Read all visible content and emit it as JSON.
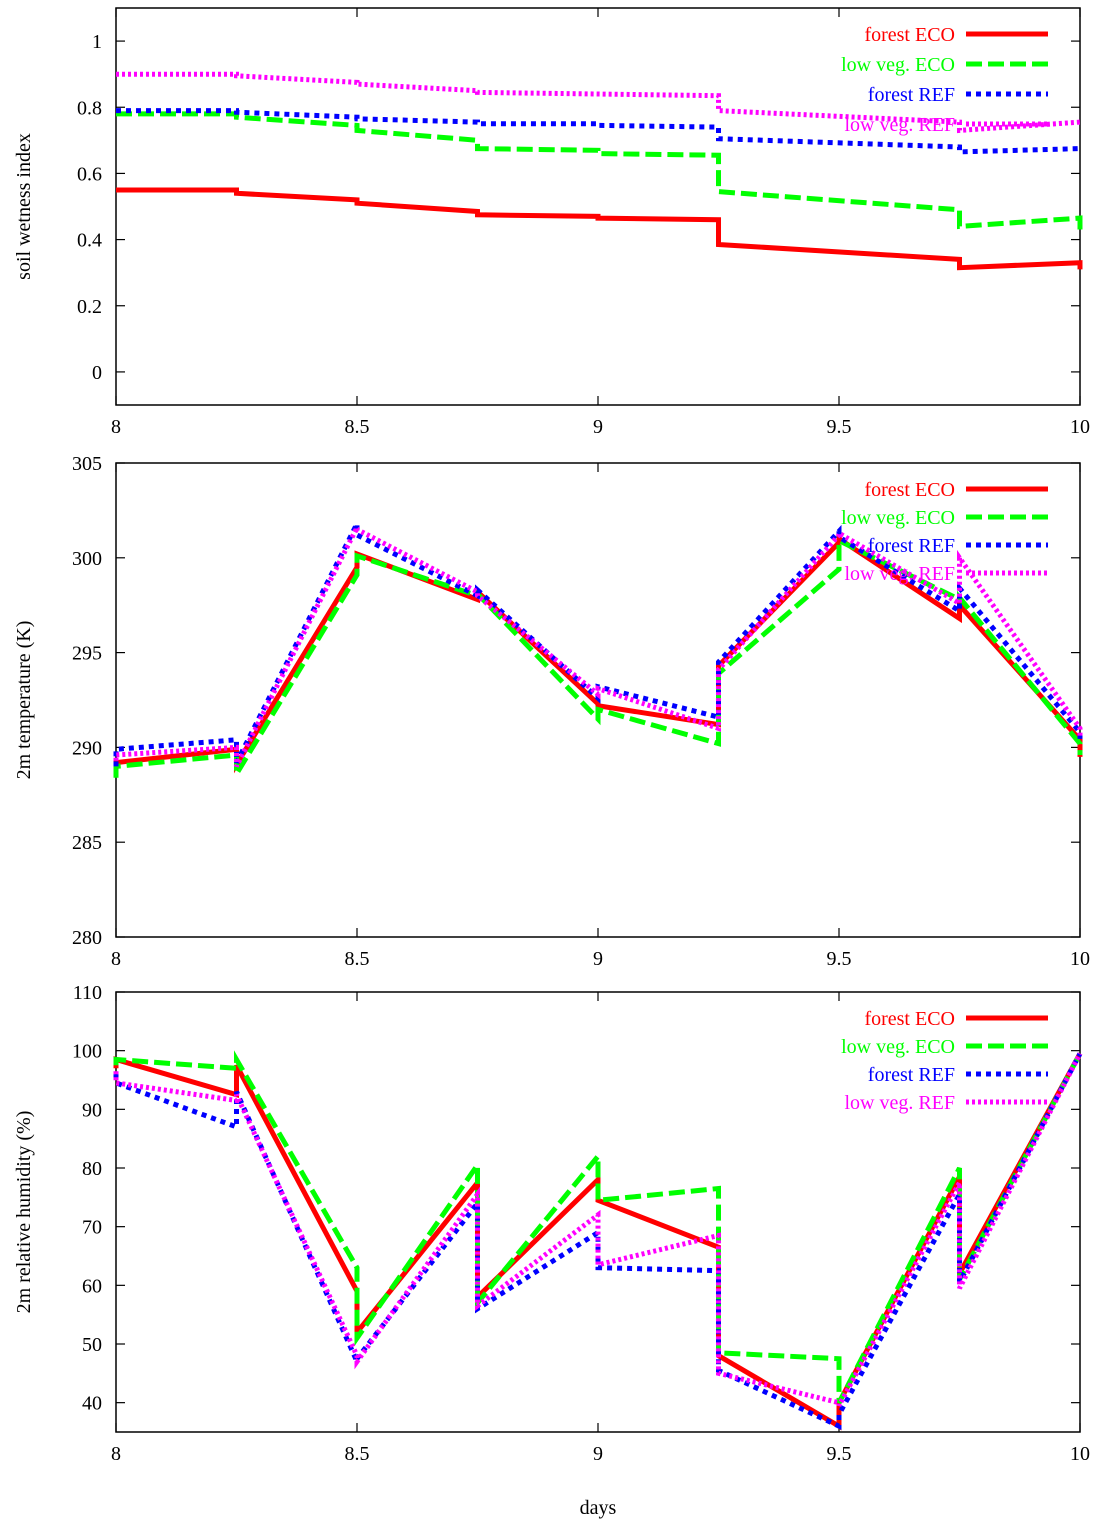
{
  "chart_data": [
    {
      "type": "line",
      "xlabel": "",
      "ylabel": "soil wetness index",
      "xlim": [
        8,
        10
      ],
      "ylim": [
        -0.1,
        1.1
      ],
      "xticks": [
        "8",
        "8.5",
        "9",
        "9.5",
        "10"
      ],
      "yticks": [
        "0",
        "0.2",
        "0.4",
        "0.6",
        "0.8",
        "1"
      ],
      "legend": "top-right",
      "grid": false,
      "series": [
        {
          "name": "forest ECO",
          "color": "#ff0000",
          "dash": "solid",
          "x": [
            8,
            8.25,
            8.25,
            8.5,
            8.5,
            8.75,
            8.75,
            9,
            9,
            9.25,
            9.25,
            9.75,
            9.75,
            10,
            10
          ],
          "y": [
            0.55,
            0.55,
            0.54,
            0.52,
            0.51,
            0.485,
            0.475,
            0.47,
            0.465,
            0.46,
            0.385,
            0.34,
            0.315,
            0.33,
            0.31
          ]
        },
        {
          "name": "low veg. ECO",
          "color": "#00ff00",
          "dash": "dashed",
          "x": [
            8,
            8.25,
            8.25,
            8.5,
            8.5,
            8.75,
            8.75,
            9,
            9,
            9.25,
            9.25,
            9.75,
            9.75,
            10,
            10
          ],
          "y": [
            0.78,
            0.78,
            0.77,
            0.745,
            0.73,
            0.7,
            0.675,
            0.67,
            0.66,
            0.655,
            0.545,
            0.49,
            0.44,
            0.465,
            0.43
          ]
        },
        {
          "name": "forest REF",
          "color": "#0000ff",
          "dash": "dotted",
          "x": [
            8,
            8.25,
            8.25,
            8.5,
            8.5,
            8.75,
            8.75,
            9,
            9,
            9.25,
            9.25,
            9.75,
            9.75,
            10
          ],
          "y": [
            0.79,
            0.79,
            0.785,
            0.77,
            0.765,
            0.755,
            0.75,
            0.75,
            0.745,
            0.74,
            0.705,
            0.68,
            0.665,
            0.675
          ]
        },
        {
          "name": "low veg. REF",
          "color": "#ff00ff",
          "dash": "densedot",
          "x": [
            8,
            8.25,
            8.25,
            8.5,
            8.5,
            8.75,
            8.75,
            9,
            9,
            9.25,
            9.25,
            9.75,
            9.75,
            10
          ],
          "y": [
            0.9,
            0.9,
            0.895,
            0.875,
            0.87,
            0.85,
            0.845,
            0.84,
            0.84,
            0.835,
            0.79,
            0.755,
            0.73,
            0.755
          ]
        }
      ]
    },
    {
      "type": "line",
      "xlabel": "",
      "ylabel": "2m temperature (K)",
      "xlim": [
        8,
        10
      ],
      "ylim": [
        280,
        305
      ],
      "xticks": [
        "8",
        "8.5",
        "9",
        "9.5",
        "10"
      ],
      "yticks": [
        "280",
        "285",
        "290",
        "295",
        "300",
        "305"
      ],
      "legend": "top-right",
      "grid": false,
      "series": [
        {
          "name": "forest ECO",
          "color": "#ff0000",
          "dash": "solid",
          "x": [
            8,
            8,
            8.25,
            8.25,
            8.5,
            8.5,
            8.75,
            8.75,
            9,
            9,
            9.25,
            9.25,
            9.5,
            9.5,
            9.75,
            9.75,
            10,
            10
          ],
          "y": [
            288.5,
            289.2,
            289.9,
            289.1,
            299.5,
            300.2,
            297.8,
            298.2,
            292.3,
            292.2,
            291.2,
            294.3,
            300.8,
            301.0,
            296.8,
            297.5,
            290.4,
            289.5
          ]
        },
        {
          "name": "low veg. ECO",
          "color": "#00ff00",
          "dash": "dashed",
          "x": [
            8,
            8,
            8.25,
            8.25,
            8.5,
            8.5,
            8.75,
            8.75,
            9,
            9,
            9.25,
            9.25,
            9.5,
            9.5,
            9.75,
            9.75,
            10,
            10
          ],
          "y": [
            288.4,
            289.0,
            289.6,
            288.6,
            299.1,
            300.1,
            298.0,
            298.1,
            291.5,
            292.0,
            290.2,
            293.9,
            299.4,
            300.9,
            297.8,
            297.9,
            290.2,
            289.6
          ]
        },
        {
          "name": "forest REF",
          "color": "#0000ff",
          "dash": "dotted",
          "x": [
            8,
            8,
            8.25,
            8.25,
            8.5,
            8.5,
            8.75,
            8.75,
            9,
            9,
            9.25,
            9.25,
            9.5,
            9.5,
            9.75,
            9.75,
            10,
            10
          ],
          "y": [
            289.0,
            289.9,
            290.4,
            289.2,
            301.8,
            301.2,
            298.0,
            298.3,
            292.6,
            293.2,
            291.6,
            294.5,
            301.4,
            301.1,
            297.2,
            298.4,
            290.8,
            290.3
          ]
        },
        {
          "name": "low veg. REF",
          "color": "#ff00ff",
          "dash": "densedot",
          "x": [
            8,
            8,
            8.25,
            8.25,
            8.5,
            8.5,
            8.75,
            8.75,
            9,
            9,
            9.25,
            9.25,
            9.5,
            9.5,
            9.75,
            9.75,
            10,
            10
          ],
          "y": [
            289.3,
            289.6,
            290.0,
            289.0,
            301.6,
            301.5,
            298.2,
            298.0,
            292.8,
            293.1,
            291.0,
            294.1,
            301.2,
            301.3,
            297.6,
            300.0,
            291.0,
            290.6
          ]
        }
      ]
    },
    {
      "type": "line",
      "xlabel": "days",
      "ylabel": "2m relative humidity (%)",
      "xlim": [
        8,
        10
      ],
      "ylim": [
        35,
        110
      ],
      "xticks": [
        "8",
        "8.5",
        "9",
        "9.5",
        "10"
      ],
      "yticks": [
        "40",
        "50",
        "60",
        "70",
        "80",
        "90",
        "100",
        "110"
      ],
      "legend": "top-right",
      "grid": false,
      "series": [
        {
          "name": "forest ECO",
          "color": "#ff0000",
          "dash": "solid",
          "x": [
            8,
            8,
            8.25,
            8.25,
            8.5,
            8.5,
            8.75,
            8.75,
            9,
            9,
            9.25,
            9.25,
            9.5,
            9.5,
            9.75,
            9.75,
            10
          ],
          "y": [
            97,
            98.5,
            92.5,
            97.5,
            59,
            52,
            77.5,
            58,
            78,
            74.5,
            66.5,
            48,
            36,
            40,
            78.5,
            62,
            99.5
          ]
        },
        {
          "name": "low veg. ECO",
          "color": "#00ff00",
          "dash": "dashed",
          "x": [
            8,
            8,
            8.25,
            8.25,
            8.5,
            8.5,
            8.75,
            8.75,
            9,
            9,
            9.25,
            9.25,
            9.5,
            9.5,
            9.75,
            9.75,
            10
          ],
          "y": [
            97.5,
            98.5,
            97,
            98.5,
            63,
            51,
            80.5,
            57,
            82,
            74.5,
            76.5,
            48.5,
            47.5,
            40,
            80,
            61,
            99.5
          ]
        },
        {
          "name": "forest REF",
          "color": "#0000ff",
          "dash": "dotted",
          "x": [
            8,
            8,
            8.25,
            8.25,
            8.5,
            8.5,
            8.75,
            8.75,
            9,
            9,
            9.25,
            9.25,
            9.5,
            9.5,
            9.75,
            9.75,
            10
          ],
          "y": [
            96,
            94.5,
            87,
            93,
            47,
            47.5,
            74,
            56,
            69,
            63,
            62.5,
            45.5,
            36,
            38,
            75.5,
            60.5,
            99.5
          ]
        },
        {
          "name": "low veg. REF",
          "color": "#ff00ff",
          "dash": "densedot",
          "x": [
            8,
            8,
            8.25,
            8.25,
            8.5,
            8.5,
            8.75,
            8.75,
            9,
            9,
            9.25,
            9.25,
            9.5,
            9.5,
            9.75,
            9.75,
            10
          ],
          "y": [
            96.5,
            94.5,
            91.5,
            92.5,
            48,
            47,
            75.5,
            56.5,
            72,
            63.5,
            68.5,
            45,
            40,
            39.5,
            77.5,
            59.5,
            99.5
          ]
        }
      ]
    }
  ]
}
